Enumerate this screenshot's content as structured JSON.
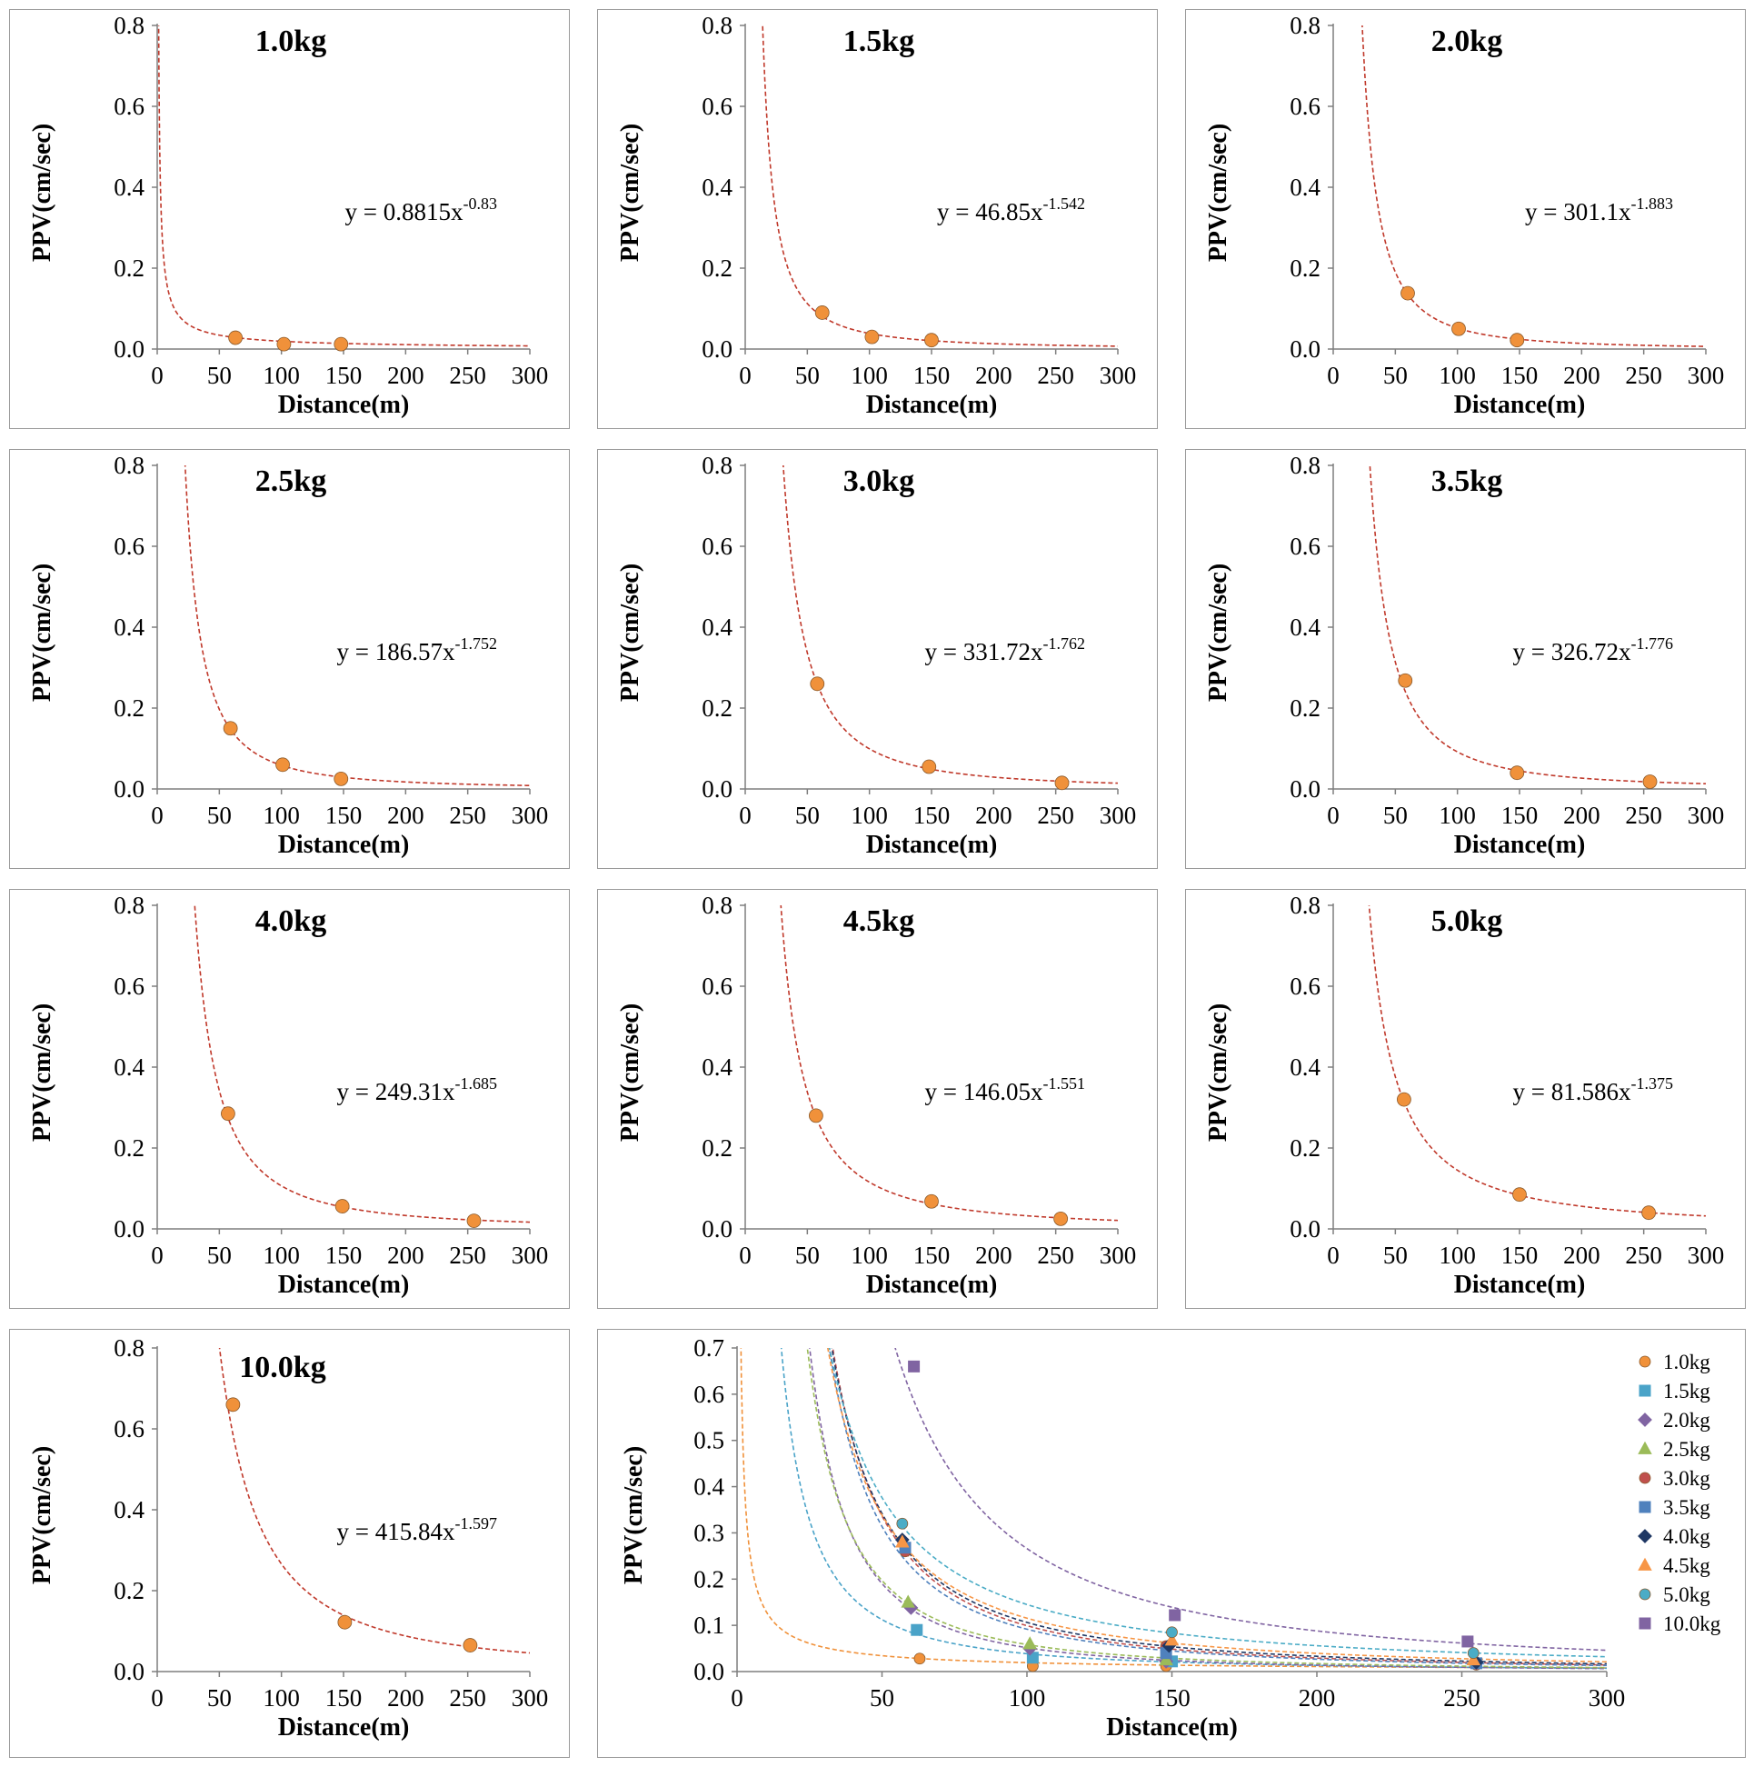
{
  "chart_data": [
    {
      "type": "scatter",
      "title": "1.0kg",
      "equation": {
        "prefix": "y = ",
        "coef": "0.8815x",
        "exp": "-0.83"
      },
      "fit": {
        "a": 0.8815,
        "b": -0.83
      },
      "points": [
        {
          "x": 63,
          "y": 0.028
        },
        {
          "x": 102,
          "y": 0.012
        },
        {
          "x": 148,
          "y": 0.012
        }
      ],
      "xlabel": "Distance(m)",
      "ylabel": "PPV(cm/sec)",
      "xlim": [
        0,
        300
      ],
      "ylim": [
        0,
        0.8
      ],
      "xticks": [
        "0",
        "50",
        "100",
        "150",
        "200",
        "250",
        "300"
      ],
      "yticks": [
        "0.0",
        "0.2",
        "0.4",
        "0.6",
        "0.8"
      ],
      "marker_color": "#f0913a"
    },
    {
      "type": "scatter",
      "title": "1.5kg",
      "equation": {
        "prefix": "y = ",
        "coef": "46.85x",
        "exp": "-1.542"
      },
      "fit": {
        "a": 46.85,
        "b": -1.542
      },
      "points": [
        {
          "x": 62,
          "y": 0.09
        },
        {
          "x": 102,
          "y": 0.03
        },
        {
          "x": 150,
          "y": 0.022
        }
      ],
      "xlabel": "Distance(m)",
      "ylabel": "PPV(cm/sec)",
      "xlim": [
        0,
        300
      ],
      "ylim": [
        0,
        0.8
      ],
      "xticks": [
        "0",
        "50",
        "100",
        "150",
        "200",
        "250",
        "300"
      ],
      "yticks": [
        "0.0",
        "0.2",
        "0.4",
        "0.6",
        "0.8"
      ],
      "marker_color": "#f0913a"
    },
    {
      "type": "scatter",
      "title": "2.0kg",
      "equation": {
        "prefix": "y = ",
        "coef": "301.1x",
        "exp": "-1.883"
      },
      "fit": {
        "a": 301.1,
        "b": -1.883
      },
      "points": [
        {
          "x": 60,
          "y": 0.138
        },
        {
          "x": 101,
          "y": 0.05
        },
        {
          "x": 148,
          "y": 0.022
        }
      ],
      "xlabel": "Distance(m)",
      "ylabel": "PPV(cm/sec)",
      "xlim": [
        0,
        300
      ],
      "ylim": [
        0,
        0.8
      ],
      "xticks": [
        "0",
        "50",
        "100",
        "150",
        "200",
        "250",
        "300"
      ],
      "yticks": [
        "0.0",
        "0.2",
        "0.4",
        "0.6",
        "0.8"
      ],
      "marker_color": "#f0913a"
    },
    {
      "type": "scatter",
      "title": "2.5kg",
      "equation": {
        "prefix": "y = ",
        "coef": "186.57x",
        "exp": "-1.752"
      },
      "fit": {
        "a": 186.57,
        "b": -1.752
      },
      "points": [
        {
          "x": 59,
          "y": 0.15
        },
        {
          "x": 101,
          "y": 0.06
        },
        {
          "x": 148,
          "y": 0.025
        }
      ],
      "xlabel": "Distance(m)",
      "ylabel": "PPV(cm/sec)",
      "xlim": [
        0,
        300
      ],
      "ylim": [
        0,
        0.8
      ],
      "xticks": [
        "0",
        "50",
        "100",
        "150",
        "200",
        "250",
        "300"
      ],
      "yticks": [
        "0.0",
        "0.2",
        "0.4",
        "0.6",
        "0.8"
      ],
      "marker_color": "#f0913a"
    },
    {
      "type": "scatter",
      "title": "3.0kg",
      "equation": {
        "prefix": "y = ",
        "coef": "331.72x",
        "exp": "-1.762"
      },
      "fit": {
        "a": 331.72,
        "b": -1.762
      },
      "points": [
        {
          "x": 58,
          "y": 0.26
        },
        {
          "x": 148,
          "y": 0.055
        },
        {
          "x": 255,
          "y": 0.015
        }
      ],
      "xlabel": "Distance(m)",
      "ylabel": "PPV(cm/sec)",
      "xlim": [
        0,
        300
      ],
      "ylim": [
        0,
        0.8
      ],
      "xticks": [
        "0",
        "50",
        "100",
        "150",
        "200",
        "250",
        "300"
      ],
      "yticks": [
        "0.0",
        "0.2",
        "0.4",
        "0.6",
        "0.8"
      ],
      "marker_color": "#f0913a"
    },
    {
      "type": "scatter",
      "title": "3.5kg",
      "equation": {
        "prefix": "y = ",
        "coef": "326.72x",
        "exp": "-1.776"
      },
      "fit": {
        "a": 326.72,
        "b": -1.776
      },
      "points": [
        {
          "x": 58,
          "y": 0.268
        },
        {
          "x": 148,
          "y": 0.04
        },
        {
          "x": 255,
          "y": 0.018
        }
      ],
      "xlabel": "Distance(m)",
      "ylabel": "PPV(cm/sec)",
      "xlim": [
        0,
        300
      ],
      "ylim": [
        0,
        0.8
      ],
      "xticks": [
        "0",
        "50",
        "100",
        "150",
        "200",
        "250",
        "300"
      ],
      "yticks": [
        "0.0",
        "0.2",
        "0.4",
        "0.6",
        "0.8"
      ],
      "marker_color": "#f0913a"
    },
    {
      "type": "scatter",
      "title": "4.0kg",
      "equation": {
        "prefix": "y = ",
        "coef": "249.31x",
        "exp": "-1.685"
      },
      "fit": {
        "a": 249.31,
        "b": -1.685
      },
      "points": [
        {
          "x": 57,
          "y": 0.285
        },
        {
          "x": 149,
          "y": 0.056
        },
        {
          "x": 255,
          "y": 0.02
        }
      ],
      "xlabel": "Distance(m)",
      "ylabel": "PPV(cm/sec)",
      "xlim": [
        0,
        300
      ],
      "ylim": [
        0,
        0.8
      ],
      "xticks": [
        "0",
        "50",
        "100",
        "150",
        "200",
        "250",
        "300"
      ],
      "yticks": [
        "0.0",
        "0.2",
        "0.4",
        "0.6",
        "0.8"
      ],
      "marker_color": "#f0913a"
    },
    {
      "type": "scatter",
      "title": "4.5kg",
      "equation": {
        "prefix": "y = ",
        "coef": "146.05x",
        "exp": "-1.551"
      },
      "fit": {
        "a": 146.05,
        "b": -1.551
      },
      "points": [
        {
          "x": 57,
          "y": 0.28
        },
        {
          "x": 150,
          "y": 0.068
        },
        {
          "x": 254,
          "y": 0.025
        }
      ],
      "xlabel": "Distance(m)",
      "ylabel": "PPV(cm/sec)",
      "xlim": [
        0,
        300
      ],
      "ylim": [
        0,
        0.8
      ],
      "xticks": [
        "0",
        "50",
        "100",
        "150",
        "200",
        "250",
        "300"
      ],
      "yticks": [
        "0.0",
        "0.2",
        "0.4",
        "0.6",
        "0.8"
      ],
      "marker_color": "#f0913a"
    },
    {
      "type": "scatter",
      "title": "5.0kg",
      "equation": {
        "prefix": "y = ",
        "coef": "81.586x",
        "exp": "-1.375"
      },
      "fit": {
        "a": 81.586,
        "b": -1.375
      },
      "points": [
        {
          "x": 57,
          "y": 0.32
        },
        {
          "x": 150,
          "y": 0.085
        },
        {
          "x": 254,
          "y": 0.04
        }
      ],
      "xlabel": "Distance(m)",
      "ylabel": "PPV(cm/sec)",
      "xlim": [
        0,
        300
      ],
      "ylim": [
        0,
        0.8
      ],
      "xticks": [
        "0",
        "50",
        "100",
        "150",
        "200",
        "250",
        "300"
      ],
      "yticks": [
        "0.0",
        "0.2",
        "0.4",
        "0.6",
        "0.8"
      ],
      "marker_color": "#f0913a"
    },
    {
      "type": "scatter",
      "title": "10.0kg",
      "equation": {
        "prefix": "y = ",
        "coef": "415.84x",
        "exp": "-1.597"
      },
      "fit": {
        "a": 415.84,
        "b": -1.597
      },
      "points": [
        {
          "x": 61,
          "y": 0.66
        },
        {
          "x": 151,
          "y": 0.122
        },
        {
          "x": 252,
          "y": 0.065
        }
      ],
      "xlabel": "Distance(m)",
      "ylabel": "PPV(cm/sec)",
      "xlim": [
        0,
        300
      ],
      "ylim": [
        0,
        0.8
      ],
      "xticks": [
        "0",
        "50",
        "100",
        "150",
        "200",
        "250",
        "300"
      ],
      "yticks": [
        "0.0",
        "0.2",
        "0.4",
        "0.6",
        "0.8"
      ],
      "marker_color": "#f0913a"
    },
    {
      "type": "scatter",
      "title": "",
      "combined": true,
      "xlabel": "Distance(m)",
      "ylabel": "PPV(cm/sec)",
      "xlim": [
        0,
        300
      ],
      "ylim": [
        0,
        0.7
      ],
      "xticks": [
        "0",
        "50",
        "100",
        "150",
        "200",
        "250",
        "300"
      ],
      "yticks": [
        "0.0",
        "0.1",
        "0.2",
        "0.3",
        "0.4",
        "0.5",
        "0.6",
        "0.7"
      ],
      "legend_position": "top-right",
      "series": [
        {
          "name": "1.0kg",
          "marker": "circle",
          "color": "#f0913a",
          "fit": {
            "a": 0.8815,
            "b": -0.83
          },
          "points": [
            {
              "x": 63,
              "y": 0.028
            },
            {
              "x": 102,
              "y": 0.012
            },
            {
              "x": 148,
              "y": 0.012
            }
          ]
        },
        {
          "name": "1.5kg",
          "marker": "square",
          "color": "#4aa3c8",
          "fit": {
            "a": 46.85,
            "b": -1.542
          },
          "points": [
            {
              "x": 62,
              "y": 0.09
            },
            {
              "x": 102,
              "y": 0.03
            },
            {
              "x": 150,
              "y": 0.022
            }
          ]
        },
        {
          "name": "2.0kg",
          "marker": "diamond",
          "color": "#8064a2",
          "fit": {
            "a": 301.1,
            "b": -1.883
          },
          "points": [
            {
              "x": 60,
              "y": 0.138
            },
            {
              "x": 101,
              "y": 0.05
            },
            {
              "x": 148,
              "y": 0.022
            }
          ]
        },
        {
          "name": "2.5kg",
          "marker": "triangle",
          "color": "#9bbb59",
          "fit": {
            "a": 186.57,
            "b": -1.752
          },
          "points": [
            {
              "x": 59,
              "y": 0.15
            },
            {
              "x": 101,
              "y": 0.06
            },
            {
              "x": 148,
              "y": 0.025
            }
          ]
        },
        {
          "name": "3.0kg",
          "marker": "circle",
          "color": "#c0504d",
          "fit": {
            "a": 331.72,
            "b": -1.762
          },
          "points": [
            {
              "x": 58,
              "y": 0.26
            },
            {
              "x": 148,
              "y": 0.055
            },
            {
              "x": 255,
              "y": 0.015
            }
          ]
        },
        {
          "name": "3.5kg",
          "marker": "square",
          "color": "#4f81bd",
          "fit": {
            "a": 326.72,
            "b": -1.776
          },
          "points": [
            {
              "x": 58,
              "y": 0.268
            },
            {
              "x": 148,
              "y": 0.04
            },
            {
              "x": 255,
              "y": 0.018
            }
          ]
        },
        {
          "name": "4.0kg",
          "marker": "diamond",
          "color": "#1f3864",
          "fit": {
            "a": 249.31,
            "b": -1.685
          },
          "points": [
            {
              "x": 57,
              "y": 0.285
            },
            {
              "x": 149,
              "y": 0.056
            },
            {
              "x": 255,
              "y": 0.02
            }
          ]
        },
        {
          "name": "4.5kg",
          "marker": "triangle",
          "color": "#f79646",
          "fit": {
            "a": 146.05,
            "b": -1.551
          },
          "points": [
            {
              "x": 57,
              "y": 0.28
            },
            {
              "x": 150,
              "y": 0.068
            },
            {
              "x": 254,
              "y": 0.025
            }
          ]
        },
        {
          "name": "5.0kg",
          "marker": "circle",
          "color": "#4bacc6",
          "fit": {
            "a": 81.586,
            "b": -1.375
          },
          "points": [
            {
              "x": 57,
              "y": 0.32
            },
            {
              "x": 150,
              "y": 0.085
            },
            {
              "x": 254,
              "y": 0.04
            }
          ]
        },
        {
          "name": "10.0kg",
          "marker": "square",
          "color": "#8064a2",
          "fit": {
            "a": 415.84,
            "b": -1.597
          },
          "points": [
            {
              "x": 61,
              "y": 0.66
            },
            {
              "x": 151,
              "y": 0.122
            },
            {
              "x": 252,
              "y": 0.065
            }
          ]
        }
      ]
    }
  ]
}
